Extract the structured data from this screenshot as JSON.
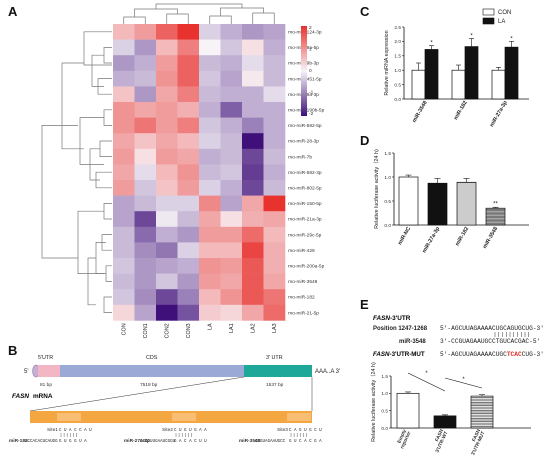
{
  "panel_labels": {
    "A": "A",
    "B": "B",
    "C": "C",
    "D": "D",
    "E": "E"
  },
  "heatmap": {
    "columns": [
      "CON",
      "CON1",
      "CON2",
      "CON3",
      "LA",
      "LA1",
      "LA2",
      "LA3"
    ],
    "rows": [
      "rno-miR-124-3p",
      "rno-miR-9a-5p",
      "rno-miR-9b-3p",
      "rno-miR-451-5p",
      "rno-miR-9a-3p",
      "rno-miR-190b-5p",
      "rno-miR-582-5p",
      "rno-miR-28-3p",
      "rno-miR-7b",
      "rno-miR-582-3p",
      "rno-miR-802-5p",
      "rno-miR-150-5p",
      "rno-miR-21a-3p",
      "rno-miR-29c-5p",
      "rno-miR-429",
      "rno-miR-200a-5p",
      "rno-miR-3548",
      "rno-miR-182",
      "rno-miR-21-5p"
    ],
    "values": [
      [
        0.6,
        0.9,
        1.5,
        2.2,
        -0.3,
        -0.6,
        -0.8,
        -0.7
      ],
      [
        -0.3,
        -0.8,
        0.6,
        1.2,
        0.0,
        -0.4,
        0.2,
        -0.6
      ],
      [
        -0.8,
        -0.6,
        0.9,
        1.5,
        -0.5,
        -0.6,
        -0.2,
        -0.5
      ],
      [
        -0.6,
        -0.5,
        1.0,
        1.5,
        -0.4,
        -0.7,
        0.1,
        -0.5
      ],
      [
        0.5,
        -0.8,
        0.8,
        1.2,
        -0.5,
        -0.6,
        -0.6,
        -0.2
      ],
      [
        1.0,
        0.8,
        0.9,
        0.7,
        -0.6,
        -1.3,
        -0.6,
        -0.6
      ],
      [
        1.0,
        1.3,
        0.9,
        1.2,
        -0.4,
        -0.6,
        -1.0,
        -0.6
      ],
      [
        0.8,
        0.5,
        0.8,
        0.6,
        -0.3,
        -0.5,
        -2.0,
        -0.6
      ],
      [
        0.9,
        0.2,
        0.9,
        0.8,
        -0.6,
        -0.5,
        -1.5,
        -0.5
      ],
      [
        0.8,
        -0.2,
        0.6,
        1.0,
        -0.5,
        -0.4,
        -1.6,
        -0.6
      ],
      [
        0.9,
        -0.4,
        0.5,
        0.9,
        -0.3,
        -0.6,
        -1.5,
        -0.5
      ],
      [
        -0.7,
        -0.5,
        -0.3,
        -0.3,
        1.1,
        -0.7,
        0.8,
        2.0
      ],
      [
        -0.7,
        -1.5,
        -0.1,
        -0.5,
        0.8,
        0.2,
        0.7,
        0.8
      ],
      [
        -0.5,
        -1.2,
        -0.6,
        -0.8,
        0.9,
        0.9,
        1.4,
        0.6
      ],
      [
        -0.5,
        -0.9,
        -1.1,
        -0.3,
        0.6,
        0.6,
        1.8,
        0.7
      ],
      [
        -0.4,
        -0.8,
        -0.7,
        -0.6,
        1.0,
        0.9,
        1.6,
        0.7
      ],
      [
        -0.5,
        -0.8,
        -0.4,
        -0.8,
        0.9,
        0.8,
        1.6,
        0.8
      ],
      [
        -0.4,
        -0.9,
        -1.5,
        -1.0,
        0.6,
        1.0,
        1.6,
        1.3
      ],
      [
        0.3,
        -0.7,
        -2.0,
        -1.4,
        0.4,
        0.3,
        0.8,
        1.4
      ]
    ],
    "scale_ticks": [
      "2",
      "1",
      "0",
      "-1",
      "-2"
    ],
    "colors": {
      "high": "#e8322e",
      "mid": "#f7f3f7",
      "low": "#3f0f7a"
    }
  },
  "chart_data": [
    {
      "panel": "C",
      "type": "bar",
      "categories": [
        "miR-3548",
        "miR-182",
        "miR-27a-3p"
      ],
      "series": [
        {
          "name": "CON",
          "values": [
            1.0,
            1.0,
            1.0
          ],
          "errors": [
            0.25,
            0.18,
            0.1
          ],
          "color": "#ffffff"
        },
        {
          "name": "LA",
          "values": [
            1.72,
            1.82,
            1.8
          ],
          "errors": [
            0.13,
            0.28,
            0.2
          ],
          "color": "#111111"
        }
      ],
      "significance": [
        "*",
        "*",
        "*"
      ],
      "ylabel": "Relative miRNA expression",
      "ylim": [
        0,
        2.5
      ],
      "yticks": [
        "0.0",
        "0.5",
        "1.0",
        "1.5",
        "2.0",
        "2.5"
      ],
      "legend_position": "top-right"
    },
    {
      "panel": "D",
      "type": "bar",
      "categories": [
        "miR-NC",
        "miR-27a-3p",
        "miR-182",
        "miR-3548"
      ],
      "values": [
        1.0,
        0.87,
        0.89,
        0.35
      ],
      "errors": [
        0.04,
        0.1,
        0.08,
        0.02
      ],
      "patterns": [
        "white",
        "black",
        "hlines",
        "dense"
      ],
      "significance": [
        "",
        "",
        "",
        "**"
      ],
      "ylabel": "Relative luciferase activity（24 h)",
      "ylim": [
        0,
        1.5
      ],
      "yticks": [
        "0.0",
        "0.5",
        "1.0",
        "1.5"
      ]
    },
    {
      "panel": "E",
      "type": "bar",
      "categories": [
        "Empty reporter",
        "FASN 3'UTR-WT",
        "FASN 3'UTR-MUT"
      ],
      "values": [
        1.0,
        0.35,
        0.92
      ],
      "errors": [
        0.04,
        0.03,
        0.04
      ],
      "patterns": [
        "white",
        "black",
        "dense"
      ],
      "ylabel": "Relative luciferase activity（24 h)",
      "ylim": [
        0,
        1.5
      ],
      "yticks": [
        "0.0",
        "0.5",
        "1.0",
        "1.5"
      ],
      "significance_brackets": [
        {
          "from": "Empty reporter",
          "to": "FASN 3'UTR-WT",
          "label": "*"
        },
        {
          "from": "FASN 3'UTR-WT",
          "to": "FASN 3'UTR-MUT",
          "label": "*"
        }
      ]
    }
  ],
  "sequence_E": {
    "title_gene": "FASN",
    "title_rest": "-3'UTR",
    "rows": [
      {
        "label": "Position 1247-1268",
        "seq": "5'-AGCUUAGAAAACUGCAGUGCUG-3'"
      },
      {
        "label": "miR-3548",
        "seq": "3'-CCGUAGAAUGCCTGUCACGAC-5'"
      },
      {
        "label_gene": "FASN",
        "label_rest": "-3'UTR-MUT",
        "seq_prefix": "5'-AGCUUAGAAAACUGC",
        "seq_mut": "TCAC",
        "seq_suffix": "CUG-3'"
      }
    ],
    "mut_color": "#e0302a"
  },
  "diagram_B": {
    "five_prime": "5'",
    "utr5": "5'UTR",
    "cds": "CDS",
    "utr3": "3' UTR",
    "poly_a": "AAA..A 3'",
    "len5": "81 bp",
    "len_cds": "7518 bp",
    "len3": "1537 bp",
    "gene": "FASN",
    "gene_suffix": " mRNA",
    "sites": [
      {
        "name": "Site1",
        "utr": "C U A C C A U",
        "mirna": "G U G G U A",
        "mirna_name": "miR-182",
        "mirna_full": "GCCACACUCAUGG",
        "left_seq": "U G G U G U A"
      },
      {
        "name": "Site2",
        "utr": "C U G U G A A",
        "mirna": "G A C A C U U",
        "mirna_name": "miR-27a-3p",
        "mirna_full": "CGCCUUGAAUCGGU"
      },
      {
        "name": "Site3",
        "utr": "C A G U G C U",
        "mirna": "G U C A C G A",
        "mirna_name": "miR-3548",
        "mirna_full": "CCGUAGAAUGCC"
      }
    ],
    "colors": {
      "utr5": "#f2b6c4",
      "cds": "#9aa9d6",
      "utr3": "#1ea89a",
      "zoom": "#f4a640"
    }
  }
}
